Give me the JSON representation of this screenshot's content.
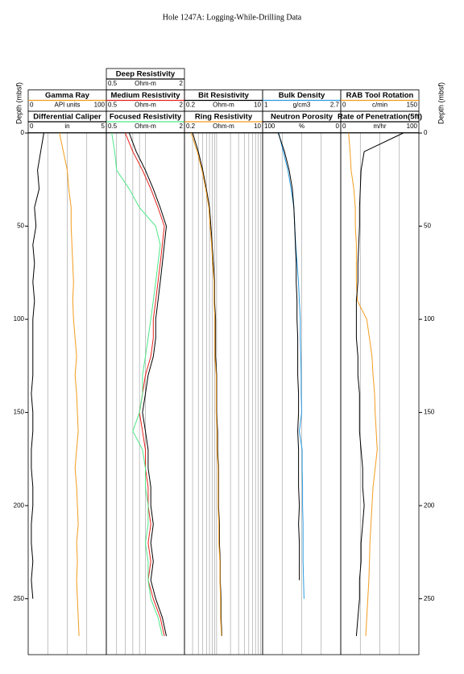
{
  "chart_data": {
    "type": "well-log",
    "title": "Hole 1247A: Logging-While-Drilling Data",
    "ylabel": "Depth (mbsf)",
    "ylim": [
      0,
      280
    ],
    "yticks": [
      0,
      50,
      100,
      150,
      200,
      250
    ],
    "depth": [
      0,
      10,
      20,
      30,
      40,
      50,
      60,
      70,
      80,
      90,
      100,
      110,
      120,
      130,
      140,
      150,
      160,
      170,
      180,
      190,
      200,
      210,
      220,
      230,
      240,
      250,
      260,
      270
    ],
    "tracks": [
      {
        "curves": [
          {
            "name": "Gamma Ray",
            "unit": "API units",
            "scale": [
              0,
              100
            ],
            "log": false,
            "color": "#f39c1f",
            "values": [
              40,
              45,
              50,
              52,
              55,
              55,
              56,
              57,
              58,
              57,
              58,
              60,
              62,
              60,
              62,
              63,
              64,
              62,
              60,
              62,
              63,
              64,
              62,
              63,
              62,
              63,
              64,
              65
            ]
          },
          {
            "name": "Differential Caliper",
            "unit": "in",
            "scale": [
              0,
              5
            ],
            "log": false,
            "color": "#000000",
            "values": [
              1.0,
              0.8,
              0.6,
              0.7,
              0.4,
              0.5,
              0.3,
              0.4,
              0.3,
              0.4,
              0.3,
              0.3,
              0.3,
              0.3,
              0.2,
              0.3,
              0.3,
              0.2,
              0.2,
              0.3,
              0.3,
              0.2,
              0.2,
              0.3,
              0.2,
              0.3,
              null,
              null
            ]
          }
        ]
      },
      {
        "curves": [
          {
            "name": "Deep Resistivity",
            "unit": "Ohm-m",
            "scale": [
              0.5,
              2
            ],
            "log": true,
            "color": "#000000",
            "values": [
              0.75,
              0.85,
              1.0,
              1.15,
              1.3,
              1.45,
              1.4,
              1.35,
              1.3,
              1.25,
              1.2,
              1.2,
              1.15,
              1.05,
              1.0,
              0.95,
              1.0,
              1.05,
              1.05,
              1.1,
              1.1,
              1.15,
              1.1,
              1.15,
              1.1,
              1.2,
              1.35,
              1.45
            ]
          },
          {
            "name": "Medium Resistivity",
            "unit": "Ohm-m",
            "scale": [
              0.5,
              2
            ],
            "log": true,
            "color": "#e8221c",
            "values": [
              0.7,
              0.8,
              0.95,
              1.1,
              1.25,
              1.4,
              1.35,
              1.3,
              1.25,
              1.2,
              1.15,
              1.15,
              1.1,
              1.0,
              0.95,
              0.9,
              0.95,
              1.0,
              1.0,
              1.05,
              1.05,
              1.1,
              1.05,
              1.1,
              1.05,
              1.15,
              1.3,
              1.4
            ]
          },
          {
            "name": "Focused Resistivity",
            "unit": "Ohm-m",
            "scale": [
              0.5,
              2
            ],
            "log": true,
            "color": "#4fe88a",
            "values": [
              0.55,
              0.58,
              0.6,
              0.75,
              0.9,
              1.2,
              1.3,
              1.25,
              1.2,
              1.15,
              1.1,
              1.05,
              1.0,
              0.95,
              0.95,
              0.9,
              0.8,
              0.95,
              1.0,
              1.0,
              1.05,
              1.05,
              1.0,
              1.05,
              1.05,
              1.1,
              1.25,
              1.35
            ]
          }
        ]
      },
      {
        "curves": [
          {
            "name": "Bit Resistivity",
            "unit": "Ohm-m",
            "scale": [
              0.2,
              10
            ],
            "log": true,
            "color": "#000000",
            "values": [
              0.3,
              0.4,
              0.5,
              0.6,
              0.7,
              0.75,
              0.8,
              0.85,
              0.9,
              0.9,
              0.95,
              0.95,
              0.95,
              1.0,
              1.0,
              1.0,
              1.05,
              1.05,
              1.1,
              1.1,
              1.1,
              1.15,
              1.15,
              1.2,
              1.2,
              1.25,
              1.25,
              1.3
            ]
          },
          {
            "name": "Ring Resistivity",
            "unit": "Ohm-m",
            "scale": [
              0.2,
              10
            ],
            "log": true,
            "color": "#f39c1f",
            "values": [
              0.28,
              0.38,
              0.48,
              0.58,
              0.68,
              0.72,
              0.78,
              0.82,
              0.88,
              0.88,
              0.92,
              0.92,
              0.92,
              0.98,
              0.98,
              0.98,
              1.02,
              1.02,
              1.08,
              1.08,
              1.08,
              1.12,
              1.12,
              1.18,
              1.18,
              1.22,
              1.22,
              1.28
            ]
          }
        ]
      },
      {
        "curves": [
          {
            "name": "Bulk Density",
            "unit": "g/cm3",
            "scale": [
              1,
              2.7
            ],
            "log": false,
            "color": "#2b9be0",
            "values": [
              1.35,
              1.45,
              1.55,
              1.62,
              1.68,
              1.7,
              1.72,
              1.75,
              1.78,
              1.8,
              1.82,
              1.82,
              1.83,
              1.84,
              1.84,
              1.85,
              1.8,
              1.86,
              1.86,
              1.87,
              1.87,
              1.88,
              1.88,
              1.88,
              1.89,
              1.9,
              null,
              null
            ]
          },
          {
            "name": "Neutron Porosity",
            "unit": "%",
            "scale": [
              100,
              0
            ],
            "log": false,
            "color": "#000000",
            "values": [
              80,
              72,
              66,
              62,
              60,
              59,
              58,
              57,
              57,
              56,
              56,
              55,
              55,
              55,
              54,
              54,
              55,
              54,
              54,
              54,
              53,
              54,
              53,
              53,
              53,
              null,
              null,
              null
            ]
          }
        ]
      },
      {
        "curves": [
          {
            "name": "RAB Tool Rotation",
            "unit": "c/min",
            "scale": [
              0,
              150
            ],
            "log": false,
            "color": "#f39c1f",
            "values": [
              15,
              18,
              20,
              25,
              28,
              28,
              30,
              30,
              30,
              32,
              50,
              55,
              60,
              62,
              65,
              66,
              68,
              70,
              66,
              62,
              60,
              58,
              56,
              55,
              54,
              52,
              50,
              48
            ]
          },
          {
            "name": "Rate of Penetration(5ft)",
            "unit": "m/hr",
            "scale": [
              0,
              100
            ],
            "log": false,
            "color": "#000000",
            "values": [
              80,
              30,
              26,
              25,
              24,
              24,
              23,
              22,
              22,
              20,
              20,
              20,
              22,
              22,
              24,
              24,
              24,
              26,
              28,
              28,
              30,
              28,
              26,
              26,
              24,
              24,
              22,
              20
            ]
          }
        ]
      }
    ]
  }
}
